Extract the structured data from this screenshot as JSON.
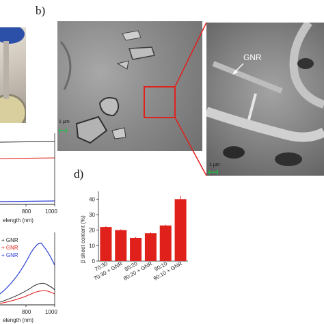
{
  "panels": {
    "b_label": "b)",
    "d_label": "d)"
  },
  "sem": {
    "annotation": "GNR",
    "scalebar_left": "1 μm",
    "scalebar_right": "1 μm"
  },
  "spectra_top": {
    "xtick_800": "800",
    "xtick_1000": "1000",
    "xlabel_partial": "elength (nm)"
  },
  "spectra_bottom": {
    "legend": [
      {
        "text": "+ GNR",
        "color": "#222222"
      },
      {
        "text": "+ GNR",
        "color": "#e0201b"
      },
      {
        "text": "+ GNR",
        "color": "#2a3fd6"
      }
    ],
    "xtick_800": "800",
    "xtick_1000": "1000",
    "xlabel_partial": "elength (nm)"
  },
  "chart_data": {
    "type": "bar",
    "categories": [
      "70:30",
      "70:30 + GNR",
      "80:20",
      "80:20 + GNR",
      "90:10",
      "90:10 + GNR"
    ],
    "values": [
      22,
      20,
      15,
      18,
      23,
      40
    ],
    "errors": [
      0.5,
      0.5,
      0.5,
      0.5,
      0.5,
      2.0
    ],
    "ylabel": "β sheet content (%)",
    "ylim": [
      0,
      45
    ],
    "yticks": [
      0,
      10,
      20,
      30,
      40
    ],
    "bar_color": "#e0201b"
  }
}
